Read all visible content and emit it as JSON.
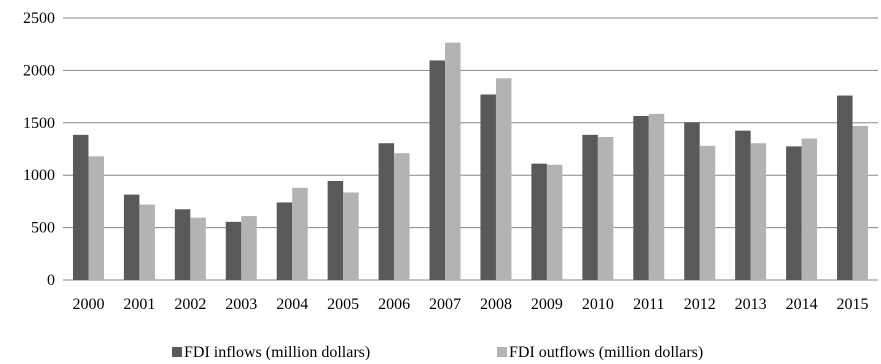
{
  "chart_data": {
    "type": "bar",
    "title": "",
    "xlabel": "",
    "ylabel": "",
    "ylim": [
      0,
      2500
    ],
    "yticks": [
      0,
      500,
      1000,
      1500,
      2000,
      2500
    ],
    "grid": true,
    "legend_position": "bottom",
    "categories": [
      "2000",
      "2001",
      "2002",
      "2003",
      "2004",
      "2005",
      "2006",
      "2007",
      "2008",
      "2009",
      "2010",
      "2011",
      "2012",
      "2013",
      "2014",
      "2015"
    ],
    "series": [
      {
        "name": "FDI inflows (million dollars)",
        "color": "#595959",
        "values": [
          1385,
          815,
          675,
          555,
          740,
          945,
          1305,
          2095,
          1770,
          1110,
          1385,
          1565,
          1505,
          1425,
          1275,
          1760
        ]
      },
      {
        "name": "FDI outflows (million dollars)",
        "color": "#b3b3b3",
        "values": [
          1180,
          720,
          595,
          610,
          880,
          835,
          1210,
          2265,
          1925,
          1100,
          1365,
          1585,
          1280,
          1305,
          1350,
          1470
        ]
      }
    ]
  }
}
